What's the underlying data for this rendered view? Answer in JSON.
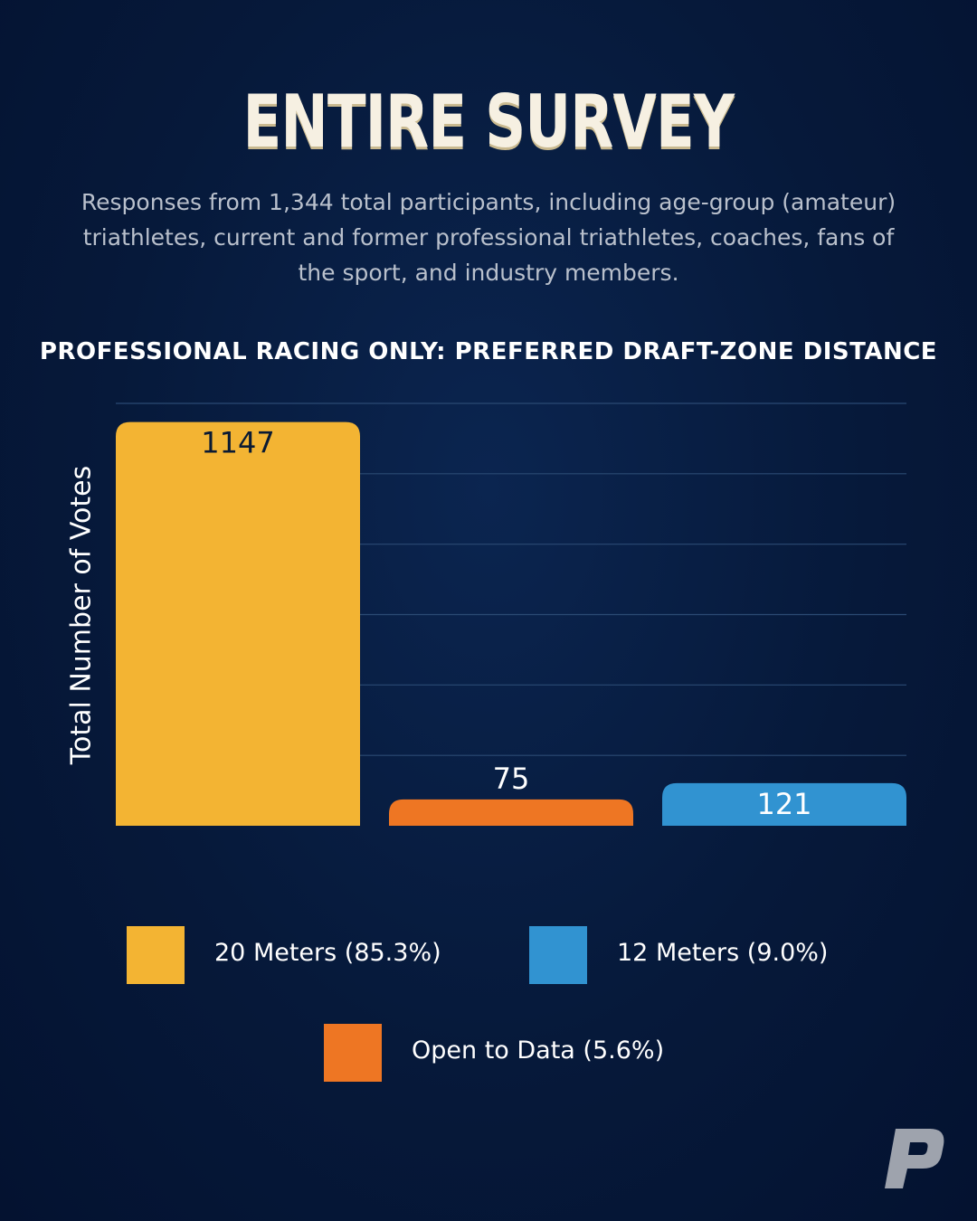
{
  "header": {
    "title": "ENTIRE SURVEY",
    "subtitle": "Responses from 1,344 total participants, including age-group (amateur) triathletes, current and former professional triathletes, coaches, fans of the sport, and industry members."
  },
  "chart_data": {
    "type": "bar",
    "title": "PROFESSIONAL RACING ONLY: PREFERRED DRAFT-ZONE DISTANCE",
    "xlabel": "",
    "ylabel": "Total Number of Votes",
    "categories": [
      "20 Meters",
      "Open to Data",
      "12 Meters"
    ],
    "values": [
      1147,
      75,
      121
    ],
    "colors": [
      "#f3b433",
      "#ee7623",
      "#3193d1"
    ],
    "ylim": [
      0,
      1200
    ],
    "grid": true,
    "legend_position": "bottom",
    "legend": [
      {
        "label": "20 Meters (85.3%)",
        "color": "#f3b433"
      },
      {
        "label": "12 Meters (9.0%)",
        "color": "#3193d1"
      },
      {
        "label": "Open to Data (5.6%)",
        "color": "#ee7623"
      }
    ]
  },
  "logo": {
    "icon": "p-logo-icon",
    "color": "#9ea3ad"
  }
}
